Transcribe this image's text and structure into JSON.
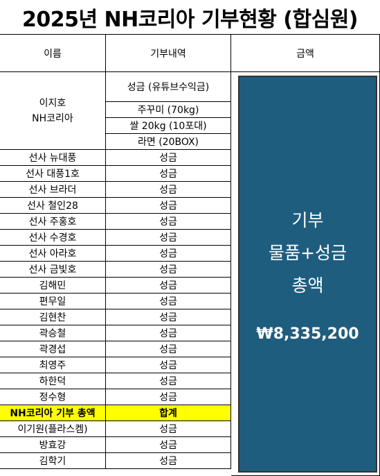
{
  "title": "2025년 NH코리아 기부현황 (합심원)",
  "headers": {
    "name": "이름",
    "detail": "기부내역",
    "amount": "금액"
  },
  "donor_group": {
    "name_line1": "이지호",
    "name_line2": "NH코리아",
    "items": [
      "성금 (유튜브수익금)",
      "주꾸미 (70kg)",
      "쌀 20kg (10포대)",
      "라면 (20BOX)"
    ]
  },
  "rows": [
    {
      "name": "선사 뉴대풍",
      "detail": "성금"
    },
    {
      "name": "선사 대풍1호",
      "detail": "성금"
    },
    {
      "name": "선사 브라더",
      "detail": "성금"
    },
    {
      "name": "선사 철인28",
      "detail": "성금"
    },
    {
      "name": "선사 주홍호",
      "detail": "성금"
    },
    {
      "name": "선사 수경호",
      "detail": "성금"
    },
    {
      "name": "선사 아라호",
      "detail": "성금"
    },
    {
      "name": "선사 금빛호",
      "detail": "성금"
    },
    {
      "name": "김해민",
      "detail": "성금"
    },
    {
      "name": "편무일",
      "detail": "성금"
    },
    {
      "name": "김현찬",
      "detail": "성금"
    },
    {
      "name": "곽승철",
      "detail": "성금"
    },
    {
      "name": "곽경섭",
      "detail": "성금"
    },
    {
      "name": "최영주",
      "detail": "성금"
    },
    {
      "name": "하한덕",
      "detail": "성금"
    },
    {
      "name": "정수형",
      "detail": "성금"
    },
    {
      "name": "NH코리아 기부 총액",
      "detail": "합계",
      "highlight": true
    },
    {
      "name": "이기원(플라스켐)",
      "detail": "성금"
    },
    {
      "name": "방효강",
      "detail": "성금"
    },
    {
      "name": "김학기",
      "detail": "성금"
    }
  ],
  "summary": {
    "line1": "기부",
    "line2": "물품+성금",
    "line3": "총액",
    "amount": "₩8,335,200"
  },
  "colors": {
    "summary_bg": "#1f5d7f",
    "highlight": "#ffff00"
  }
}
